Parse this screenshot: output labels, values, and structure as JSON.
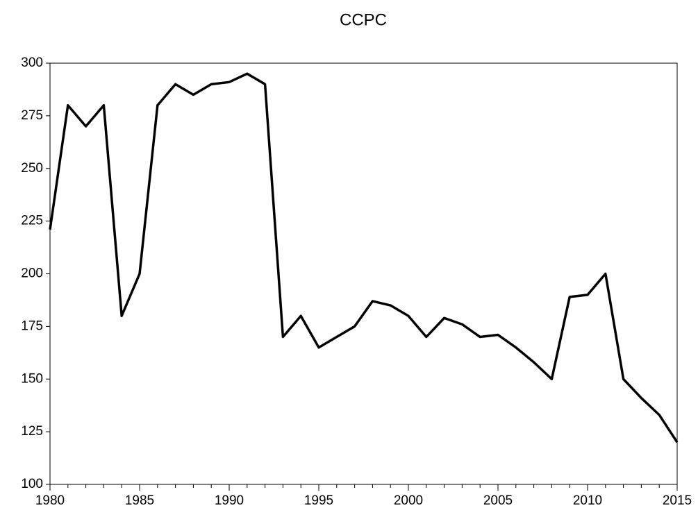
{
  "chart_data": {
    "type": "line",
    "title": "CCPC",
    "x": [
      1980,
      1981,
      1982,
      1983,
      1984,
      1985,
      1986,
      1987,
      1988,
      1989,
      1990,
      1991,
      1992,
      1993,
      1994,
      1995,
      1996,
      1997,
      1998,
      1999,
      2000,
      2001,
      2002,
      2003,
      2004,
      2005,
      2006,
      2007,
      2008,
      2009,
      2010,
      2011,
      2012,
      2013,
      2014,
      2015
    ],
    "series": [
      {
        "name": "CCPC",
        "color": "#000000",
        "values": [
          221,
          280,
          270,
          280,
          180,
          200,
          280,
          290,
          285,
          290,
          291,
          295,
          290,
          170,
          180,
          165,
          170,
          175,
          187,
          185,
          180,
          170,
          179,
          176,
          170,
          171,
          165,
          158,
          150,
          189,
          190,
          200,
          150,
          141,
          133,
          120
        ]
      }
    ],
    "xlim": [
      1980,
      2015
    ],
    "xticks": [
      1980,
      1985,
      1990,
      1995,
      2000,
      2005,
      2010,
      2015
    ],
    "ylim": [
      100,
      300
    ],
    "yticks": [
      100,
      125,
      150,
      175,
      200,
      225,
      250,
      275,
      300
    ],
    "grid": false
  }
}
